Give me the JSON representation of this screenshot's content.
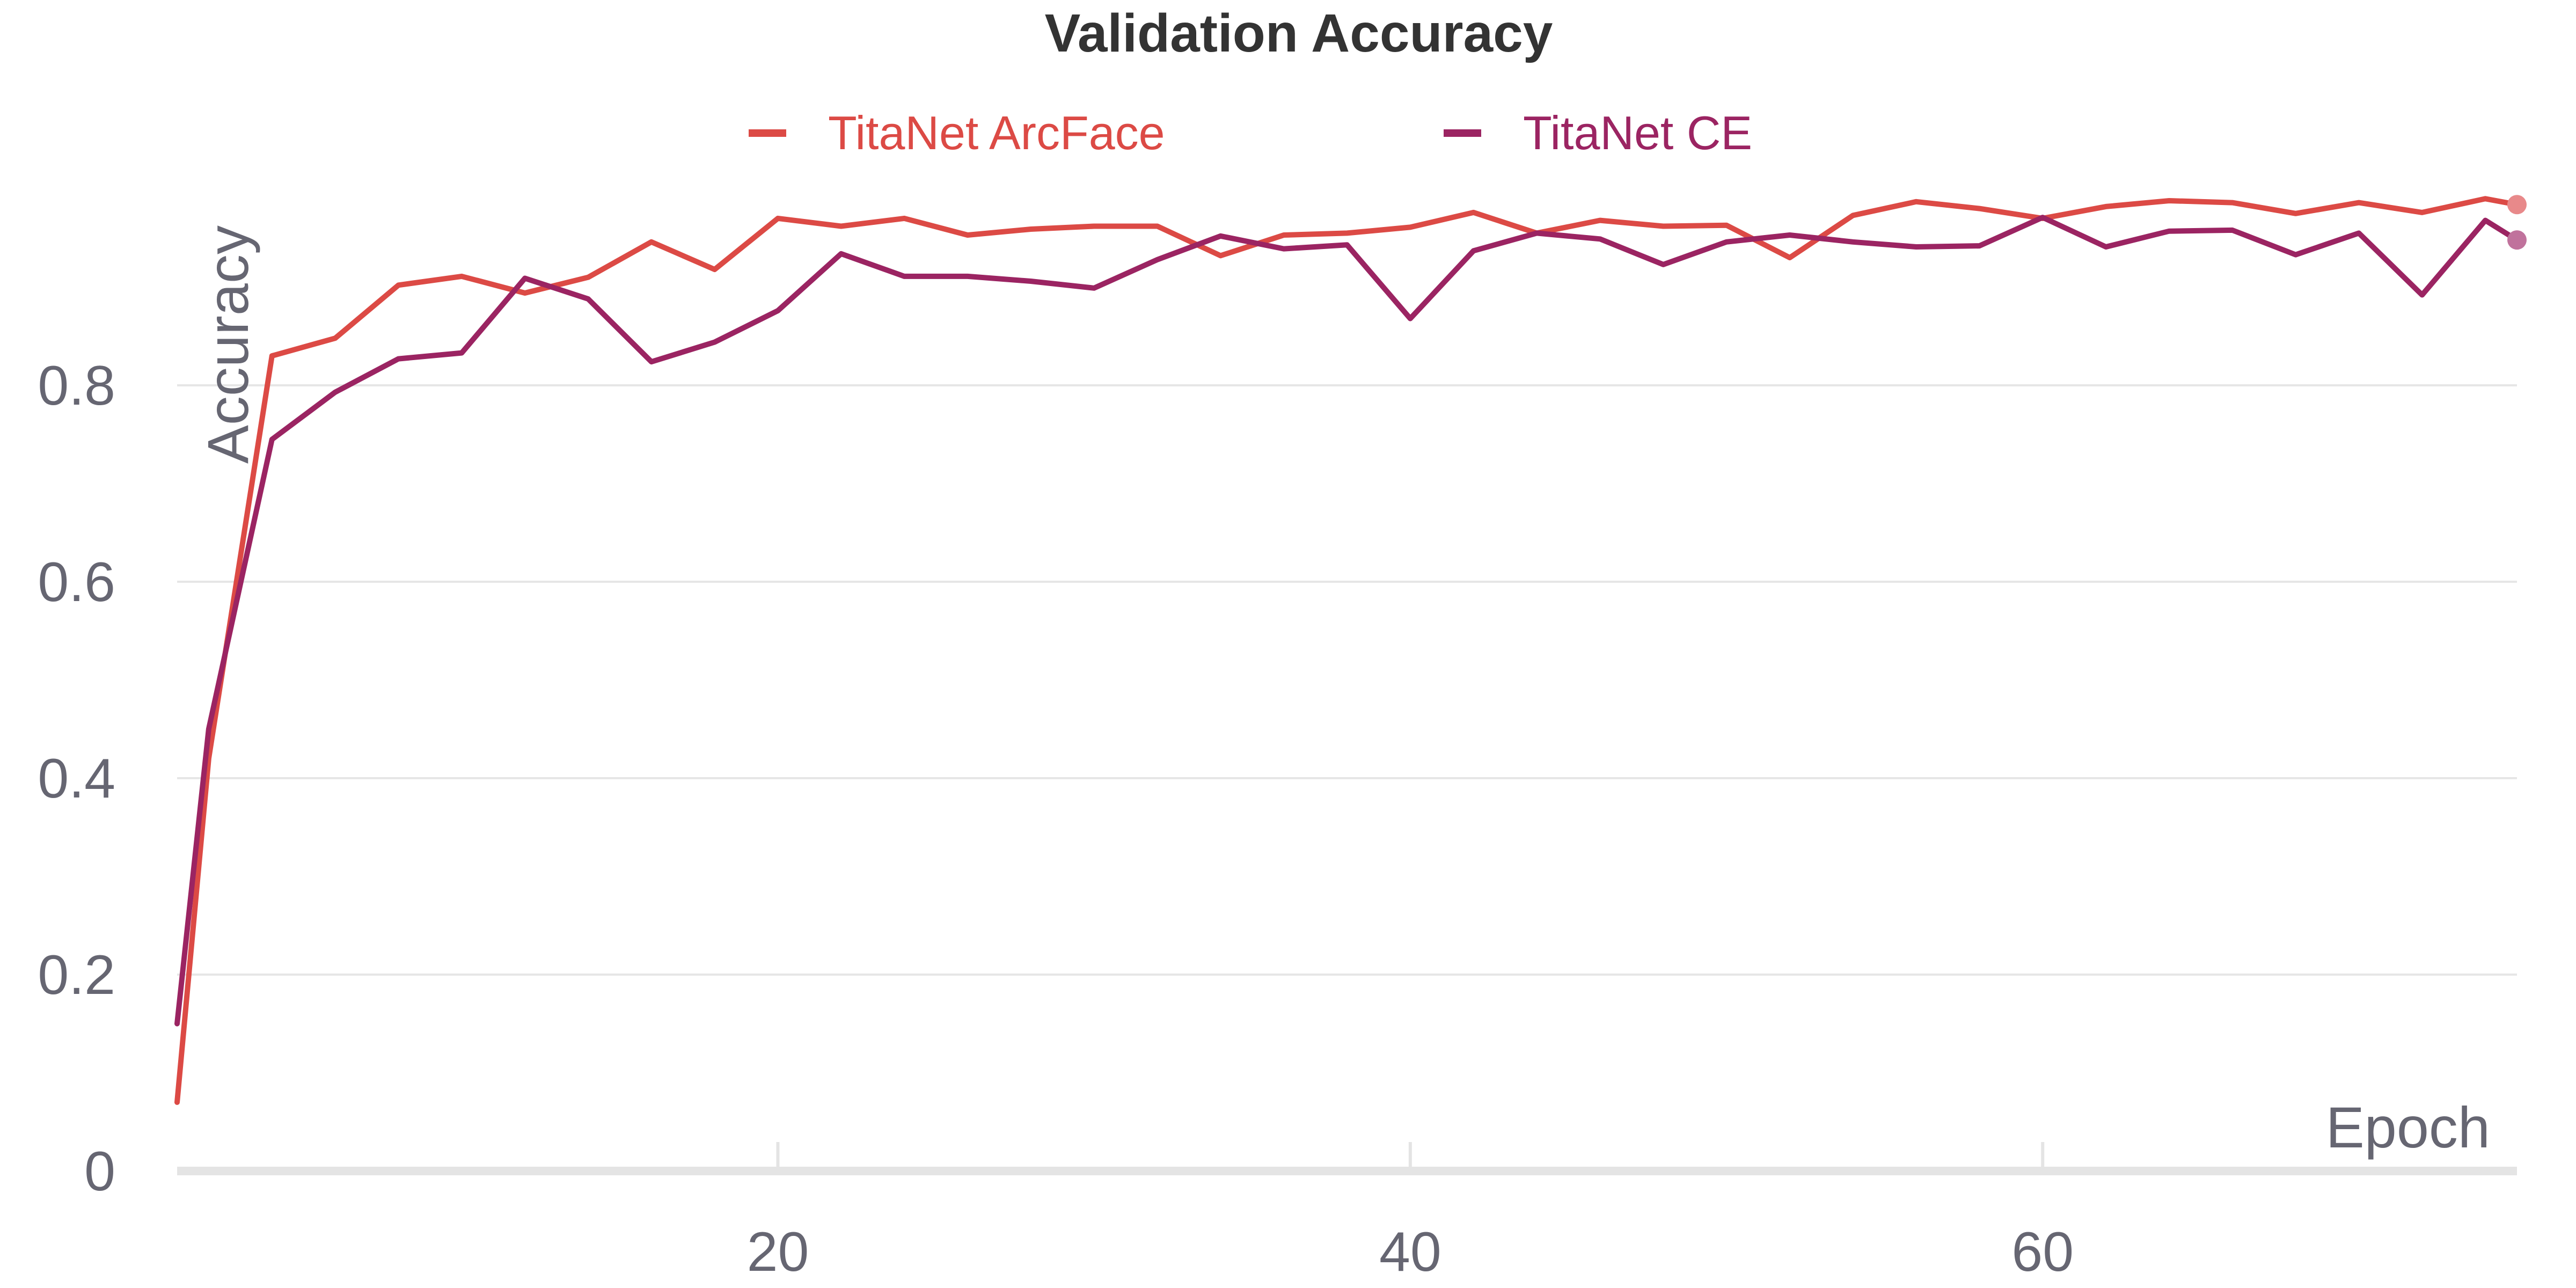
{
  "chart_data": {
    "type": "line",
    "title": "Validation Accuracy",
    "xlabel": "Epoch",
    "ylabel": "Accuracy",
    "xlim": [
      1,
      75
    ],
    "ylim": [
      0,
      1.0
    ],
    "x_ticks": [
      20,
      40,
      60
    ],
    "x_tick_labels": [
      "20",
      "40",
      "60"
    ],
    "y_ticks": [
      0,
      0.2,
      0.4,
      0.6,
      0.8
    ],
    "y_tick_labels": [
      "0",
      "0.2",
      "0.4",
      "0.6",
      "0.8"
    ],
    "grid": true,
    "legend_position": "top-center",
    "x": [
      1,
      2,
      4,
      6,
      8,
      10,
      12,
      14,
      16,
      18,
      20,
      22,
      24,
      26,
      28,
      30,
      32,
      34,
      36,
      38,
      40,
      42,
      44,
      46,
      48,
      50,
      52,
      54,
      56,
      58,
      60,
      62,
      64,
      66,
      68,
      70,
      72,
      74,
      75
    ],
    "series": [
      {
        "name": "TitaNet ArcFace",
        "color": "#dc4a45",
        "end_marker_color": "#e8898a",
        "values": [
          0.07,
          0.42,
          0.83,
          0.848,
          0.902,
          0.911,
          0.894,
          0.91,
          0.946,
          0.918,
          0.97,
          0.962,
          0.97,
          0.953,
          0.959,
          0.962,
          0.962,
          0.932,
          0.953,
          0.955,
          0.961,
          0.976,
          0.955,
          0.968,
          0.962,
          0.963,
          0.93,
          0.973,
          0.987,
          0.98,
          0.97,
          0.982,
          0.988,
          0.986,
          0.975,
          0.986,
          0.976,
          0.99,
          0.984
        ]
      },
      {
        "name": "TitaNet CE",
        "color": "#9b2462",
        "end_marker_color": "#c0729c",
        "values": [
          0.15,
          0.45,
          0.745,
          0.793,
          0.827,
          0.833,
          0.909,
          0.888,
          0.824,
          0.844,
          0.876,
          0.934,
          0.911,
          0.911,
          0.906,
          0.899,
          0.928,
          0.952,
          0.939,
          0.943,
          0.868,
          0.937,
          0.955,
          0.949,
          0.923,
          0.946,
          0.953,
          0.946,
          0.941,
          0.942,
          0.971,
          0.941,
          0.957,
          0.958,
          0.933,
          0.955,
          0.892,
          0.968,
          0.948
        ]
      }
    ]
  }
}
